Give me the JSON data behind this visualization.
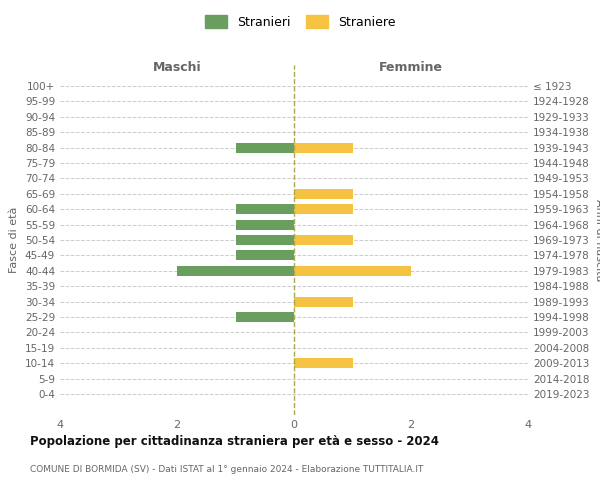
{
  "age_groups": [
    "100+",
    "95-99",
    "90-94",
    "85-89",
    "80-84",
    "75-79",
    "70-74",
    "65-69",
    "60-64",
    "55-59",
    "50-54",
    "45-49",
    "40-44",
    "35-39",
    "30-34",
    "25-29",
    "20-24",
    "15-19",
    "10-14",
    "5-9",
    "0-4"
  ],
  "birth_years": [
    "≤ 1923",
    "1924-1928",
    "1929-1933",
    "1934-1938",
    "1939-1943",
    "1944-1948",
    "1949-1953",
    "1954-1958",
    "1959-1963",
    "1964-1968",
    "1969-1973",
    "1974-1978",
    "1979-1983",
    "1984-1988",
    "1989-1993",
    "1994-1998",
    "1999-2003",
    "2004-2008",
    "2009-2013",
    "2014-2018",
    "2019-2023"
  ],
  "males": [
    0,
    0,
    0,
    0,
    1,
    0,
    0,
    0,
    1,
    1,
    1,
    1,
    2,
    0,
    0,
    1,
    0,
    0,
    0,
    0,
    0
  ],
  "females": [
    0,
    0,
    0,
    0,
    1,
    0,
    0,
    1,
    1,
    0,
    1,
    0,
    2,
    0,
    1,
    0,
    0,
    0,
    1,
    0,
    0
  ],
  "male_color": "#6a9e5f",
  "female_color": "#f5c242",
  "grid_color": "#cccccc",
  "title": "Popolazione per cittadinanza straniera per età e sesso - 2024",
  "subtitle": "COMUNE DI BORMIDA (SV) - Dati ISTAT al 1° gennaio 2024 - Elaborazione TUTTITALIA.IT",
  "xlabel_left": "Maschi",
  "xlabel_right": "Femmine",
  "ylabel_left": "Fasce di età",
  "ylabel_right": "Anni di nascita",
  "legend_male": "Stranieri",
  "legend_female": "Straniere",
  "xlim": 4,
  "background_color": "#ffffff"
}
